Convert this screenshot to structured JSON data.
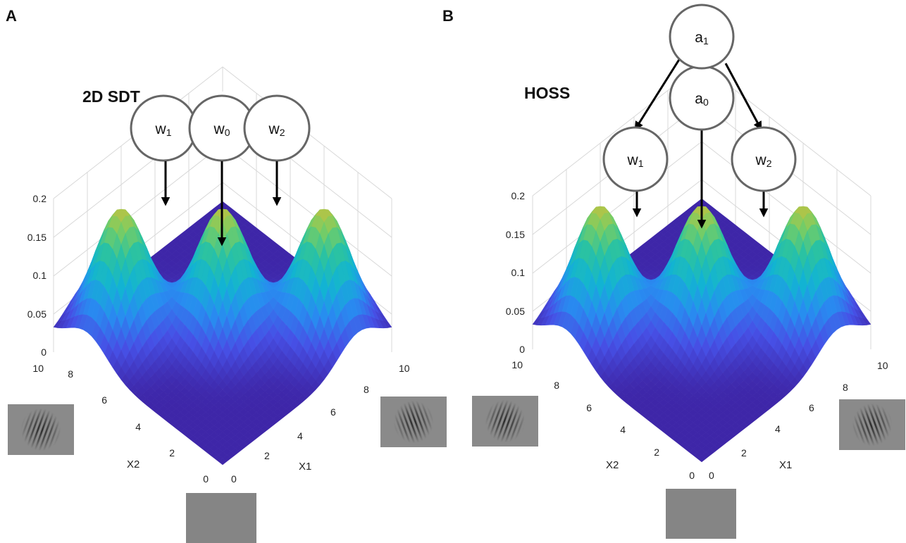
{
  "panels": [
    {
      "id": "A",
      "letter": "A",
      "title": "2D SDT",
      "nodes": [
        {
          "key": "w1",
          "base": "w",
          "sub": "1"
        },
        {
          "key": "w0",
          "base": "w",
          "sub": "0"
        },
        {
          "key": "w2",
          "base": "w",
          "sub": "2"
        }
      ],
      "z_ticks": [
        "0",
        "0.05",
        "0.1",
        "0.15",
        "0.2"
      ],
      "x1_ticks": [
        "0",
        "2",
        "4",
        "6",
        "8",
        "10"
      ],
      "x2_ticks": [
        "0",
        "2",
        "4",
        "6",
        "8",
        "10"
      ],
      "x1_label": "X1",
      "x2_label": "X2"
    },
    {
      "id": "B",
      "letter": "B",
      "title": "HOSS",
      "nodes": [
        {
          "key": "a1",
          "base": "a",
          "sub": "1"
        },
        {
          "key": "a0",
          "base": "a",
          "sub": "0"
        },
        {
          "key": "w1",
          "base": "w",
          "sub": "1"
        },
        {
          "key": "w2",
          "base": "w",
          "sub": "2"
        }
      ],
      "z_ticks": [
        "0",
        "0.05",
        "0.1",
        "0.15",
        "0.2"
      ],
      "x1_ticks": [
        "0",
        "2",
        "4",
        "6",
        "8",
        "10"
      ],
      "x2_ticks": [
        "0",
        "2",
        "4",
        "6",
        "8",
        "10"
      ],
      "x1_label": "X1",
      "x2_label": "X2"
    }
  ],
  "surface": {
    "type": "gaussian-mixture-3d",
    "x_range": [
      0,
      10
    ],
    "y_range": [
      0,
      10
    ],
    "z_range": [
      0,
      0.2
    ],
    "peaks": [
      {
        "name": "w1",
        "x1": 2,
        "x2": 8,
        "height": 0.16
      },
      {
        "name": "w0",
        "x1": 5,
        "x2": 5,
        "height": 0.16
      },
      {
        "name": "w2",
        "x1": 8,
        "x2": 2,
        "height": 0.16
      }
    ],
    "colormap": "parula",
    "colors": {
      "low": "#3e26a8",
      "mid": "#2cb7a0",
      "high": "#f9fb0e"
    }
  },
  "stimuli": [
    "gabor-tilted-left",
    "gabor-tilted-right",
    "blank-gray"
  ]
}
